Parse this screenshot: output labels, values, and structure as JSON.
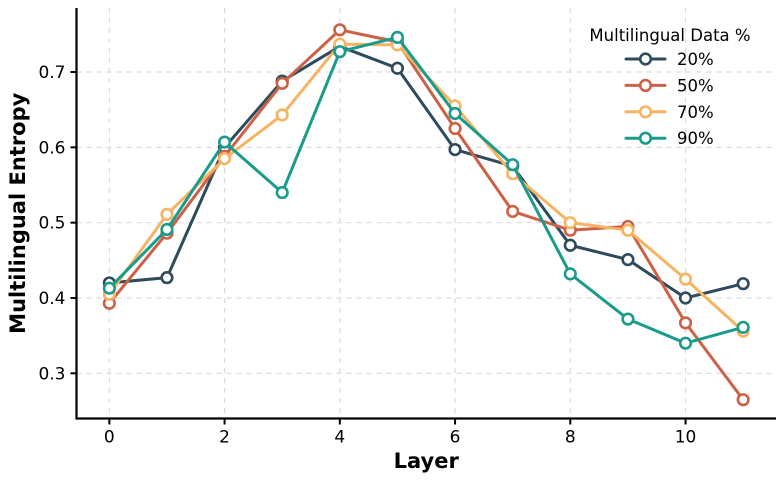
{
  "chart_data": {
    "type": "line",
    "title": "",
    "xlabel": "Layer",
    "ylabel": "Multilingual Entropy",
    "x": [
      0,
      1,
      2,
      3,
      4,
      5,
      6,
      7,
      8,
      9,
      10,
      11
    ],
    "series": [
      {
        "name": "20%",
        "color": "#2e4b5c",
        "values": [
          0.42,
          0.427,
          0.6,
          0.688,
          0.734,
          0.705,
          0.597,
          0.575,
          0.47,
          0.451,
          0.4,
          0.419
        ]
      },
      {
        "name": "50%",
        "color": "#cd6146",
        "values": [
          0.393,
          0.486,
          0.588,
          0.685,
          0.756,
          0.74,
          0.625,
          0.515,
          0.49,
          0.495,
          0.367,
          0.265
        ]
      },
      {
        "name": "70%",
        "color": "#f6b462",
        "values": [
          0.405,
          0.511,
          0.585,
          0.643,
          0.737,
          0.736,
          0.655,
          0.565,
          0.5,
          0.49,
          0.425,
          0.356
        ]
      },
      {
        "name": "90%",
        "color": "#1a9b8c",
        "values": [
          0.413,
          0.491,
          0.607,
          0.54,
          0.727,
          0.746,
          0.645,
          0.577,
          0.432,
          0.372,
          0.34,
          0.361
        ]
      }
    ],
    "legend": {
      "title": "Multilingual Data %",
      "entries": [
        "20%",
        "50%",
        "70%",
        "90%"
      ],
      "position": "upper-right",
      "frame": false
    },
    "xlim": [
      -0.57,
      11.57
    ],
    "ylim": [
      0.24,
      0.785
    ],
    "xticks": [
      0,
      2,
      4,
      6,
      8,
      10
    ],
    "xtick_labels": [
      "0",
      "2",
      "4",
      "6",
      "8",
      "10"
    ],
    "yticks": [
      0.3,
      0.4,
      0.5,
      0.6,
      0.7
    ],
    "ytick_labels": [
      "0.3",
      "0.4",
      "0.5",
      "0.6",
      "0.7"
    ],
    "grid": "dashed",
    "colors": {
      "grid": "#dadada",
      "spine": "#000000",
      "text": "#000000",
      "marker_fill": "#ffffff"
    }
  }
}
